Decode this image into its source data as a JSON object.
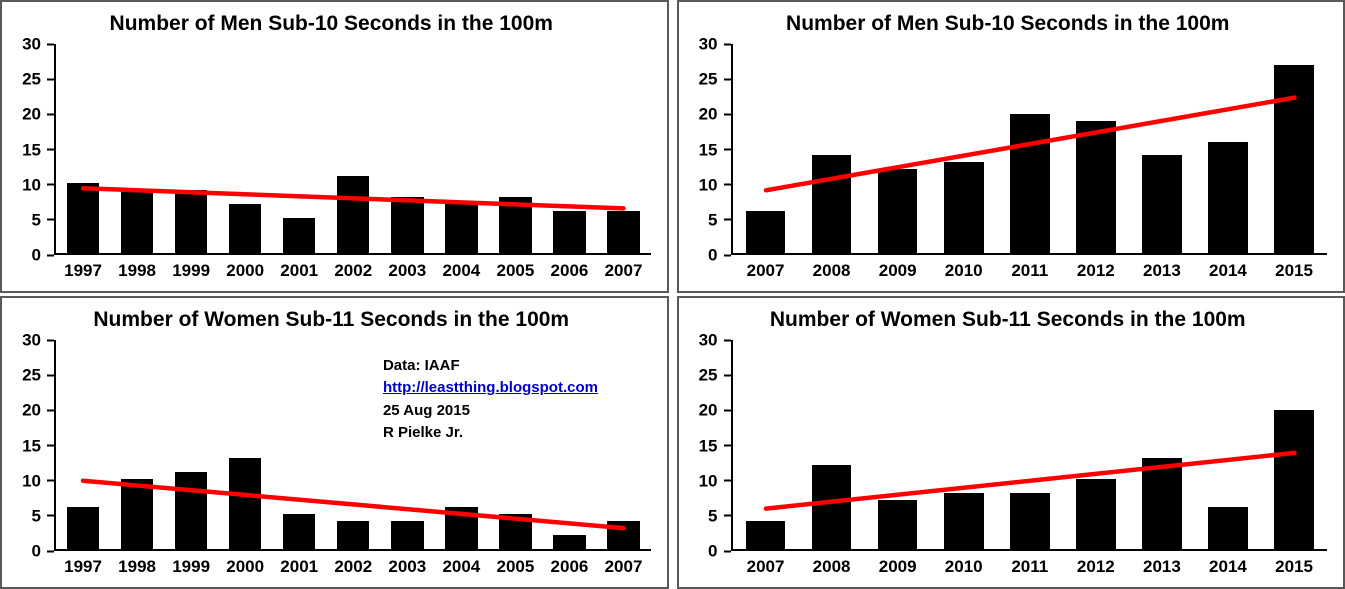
{
  "colors": {
    "bar": "#000000",
    "trend": "#ff0000",
    "axis": "#000000",
    "link": "#0000cc",
    "panel_border": "#595959"
  },
  "chart_data": [
    {
      "type": "bar",
      "title": "Number of Men Sub-10 Seconds in the 100m",
      "categories": [
        "1997",
        "1998",
        "1999",
        "2000",
        "2001",
        "2002",
        "2003",
        "2004",
        "2005",
        "2006",
        "2007"
      ],
      "values": [
        10,
        9,
        9,
        7,
        5,
        11,
        8,
        7,
        8,
        6,
        6
      ],
      "trendline": [
        9.3,
        6.4
      ],
      "trendline_color": "#ff0000",
      "bar_color": "#000000",
      "xlabel": "",
      "ylabel": "",
      "ylim": [
        0,
        30
      ],
      "yticks": [
        0,
        5,
        10,
        15,
        20,
        25,
        30
      ],
      "grid": false,
      "legend": "none"
    },
    {
      "type": "bar",
      "title": "Number of Men Sub-10 Seconds in the 100m",
      "categories": [
        "2007",
        "2008",
        "2009",
        "2010",
        "2011",
        "2012",
        "2013",
        "2014",
        "2015"
      ],
      "values": [
        6,
        14,
        12,
        13,
        20,
        19,
        14,
        16,
        27
      ],
      "trendline": [
        9.0,
        22.3
      ],
      "trendline_color": "#ff0000",
      "bar_color": "#000000",
      "xlabel": "",
      "ylabel": "",
      "ylim": [
        0,
        30
      ],
      "yticks": [
        0,
        5,
        10,
        15,
        20,
        25,
        30
      ],
      "grid": false,
      "legend": "none"
    },
    {
      "type": "bar",
      "title": "Number of Women Sub-11 Seconds in the 100m",
      "categories": [
        "1997",
        "1998",
        "1999",
        "2000",
        "2001",
        "2002",
        "2003",
        "2004",
        "2005",
        "2006",
        "2007"
      ],
      "values": [
        6,
        10,
        11,
        13,
        5,
        4,
        4,
        6,
        5,
        2,
        4
      ],
      "trendline": [
        9.8,
        3.0
      ],
      "trendline_color": "#ff0000",
      "bar_color": "#000000",
      "xlabel": "",
      "ylabel": "",
      "ylim": [
        0,
        30
      ],
      "yticks": [
        0,
        5,
        10,
        15,
        20,
        25,
        30
      ],
      "grid": false,
      "legend": "none"
    },
    {
      "type": "bar",
      "title": "Number of Women Sub-11 Seconds in the 100m",
      "categories": [
        "2007",
        "2008",
        "2009",
        "2010",
        "2011",
        "2012",
        "2013",
        "2014",
        "2015"
      ],
      "values": [
        4,
        12,
        7,
        8,
        8,
        10,
        13,
        6,
        20
      ],
      "trendline": [
        5.8,
        13.8
      ],
      "trendline_color": "#ff0000",
      "bar_color": "#000000",
      "xlabel": "",
      "ylabel": "",
      "ylim": [
        0,
        30
      ],
      "yticks": [
        0,
        5,
        10,
        15,
        20,
        25,
        30
      ],
      "grid": false,
      "legend": "none"
    }
  ],
  "annotation": {
    "source": "Data: IAAF",
    "link": "http://leastthing.blogspot.com",
    "date": "25 Aug 2015",
    "author": "R Pielke Jr."
  }
}
